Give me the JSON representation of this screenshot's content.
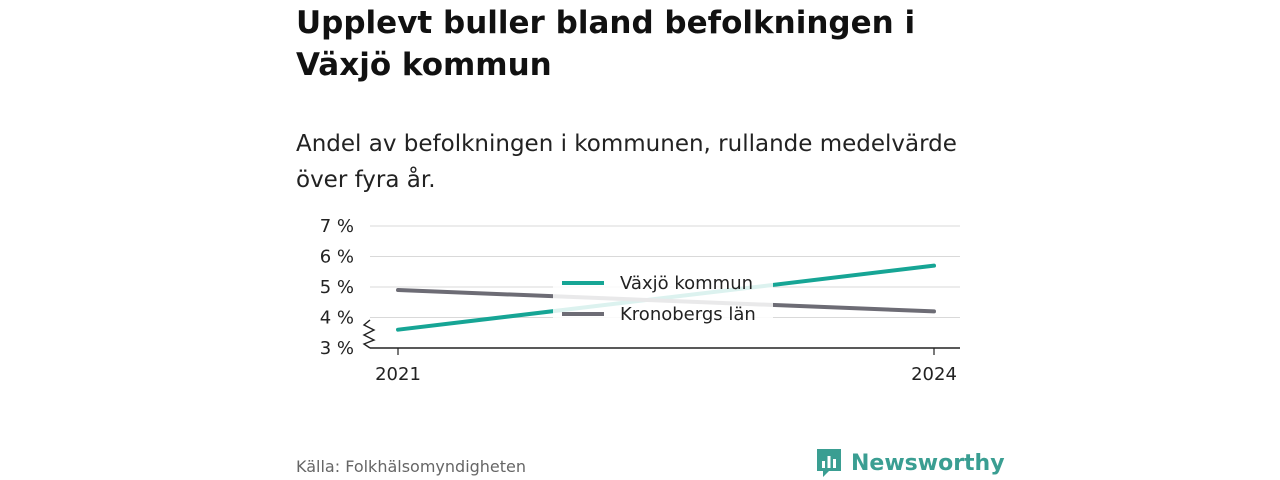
{
  "title": "Upplevt buller bland befolkningen i Växjö kommun",
  "subtitle": "Andel av befolkningen i kommunen, rullande medelvärde över fyra år.",
  "source": "Källa: Folkhälsomyndigheten",
  "brand": {
    "name": "Newsworthy",
    "icon": "newsworthy-logo-icon"
  },
  "colors": {
    "series1": "#16a595",
    "series2": "#6d6c75",
    "brand": "#3a9e92"
  },
  "chart_data": {
    "type": "line",
    "x": [
      2021,
      2024
    ],
    "x_tick_labels": [
      "2021",
      "2024"
    ],
    "y_ticks": [
      3,
      4,
      5,
      6,
      7
    ],
    "y_tick_labels": [
      "3 %",
      "4 %",
      "5 %",
      "6 %",
      "7 %"
    ],
    "ylim": [
      3,
      7
    ],
    "y_axis_break": true,
    "grid": true,
    "legend_position": "center",
    "series": [
      {
        "name": "Växjö kommun",
        "color": "#16a595",
        "values": [
          3.6,
          5.7
        ]
      },
      {
        "name": "Kronobergs län",
        "color": "#6d6c75",
        "values": [
          4.9,
          4.2
        ]
      }
    ]
  }
}
